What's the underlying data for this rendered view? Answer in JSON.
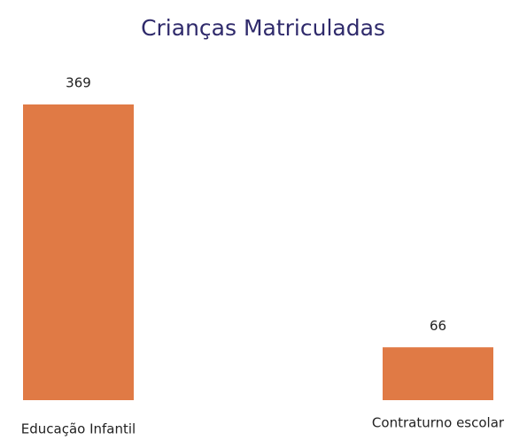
{
  "chart_data": {
    "type": "bar",
    "title": "Crianças Matriculadas",
    "categories": [
      "Educação Infantil",
      "Contraturno escolar"
    ],
    "values": [
      369,
      66
    ],
    "color": "#e07a45"
  }
}
